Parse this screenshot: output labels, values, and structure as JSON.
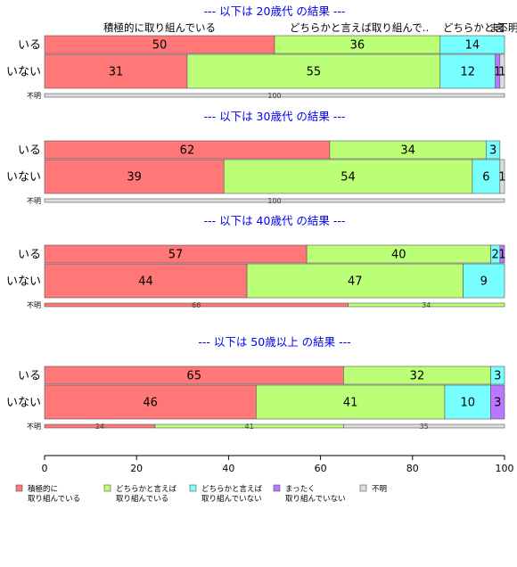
{
  "chart_data": {
    "type": "bar",
    "stacked": "horizontal-100",
    "categories_order": [
      "いる",
      "いない",
      "不明"
    ],
    "series": [
      {
        "name": "積極的に\n取り組んでいる",
        "color": "#ff7777"
      },
      {
        "name": "どちらかと言えば\n取り組んでいる",
        "color": "#bbff77"
      },
      {
        "name": "どちらかと言えば\n取り組んでいない",
        "color": "#77ffff"
      },
      {
        "name": "まったく\n取り組んでいない",
        "color": "#bb77ff"
      },
      {
        "name": "不明",
        "color": "#dddddd"
      }
    ],
    "top_labels": [
      "積極的に取り組んでいる",
      "どちらかと言えば取り組んで..",
      "どちらかと言..",
      "ま..",
      "不明"
    ],
    "xlim": [
      0,
      100
    ],
    "xticks": [
      0,
      20,
      40,
      60,
      80,
      100
    ],
    "panels": [
      {
        "title": "--- 以下は 20歳代 の結果 ---",
        "rows": [
          {
            "label": "いる",
            "values": [
              50,
              36,
              14,
              0,
              0
            ]
          },
          {
            "label": "いない",
            "values": [
              31,
              55,
              12,
              1,
              1
            ]
          },
          {
            "label": "不明",
            "values": [
              0,
              0,
              0,
              0,
              100
            ]
          }
        ]
      },
      {
        "title": "--- 以下は 30歳代 の結果 ---",
        "rows": [
          {
            "label": "いる",
            "values": [
              62,
              34,
              3,
              0,
              0
            ]
          },
          {
            "label": "いない",
            "values": [
              39,
              54,
              6,
              0,
              1
            ]
          },
          {
            "label": "不明",
            "values": [
              0,
              0,
              0,
              0,
              100
            ]
          }
        ]
      },
      {
        "title": "--- 以下は 40歳代 の結果 ---",
        "rows": [
          {
            "label": "いる",
            "values": [
              57,
              40,
              2,
              1,
              0
            ]
          },
          {
            "label": "いない",
            "values": [
              44,
              47,
              9,
              0,
              0
            ]
          },
          {
            "label": "不明",
            "values": [
              66,
              34,
              0,
              0,
              0
            ]
          }
        ]
      },
      {
        "title": "--- 以下は 50歳以上 の結果 ---",
        "rows": [
          {
            "label": "いる",
            "values": [
              65,
              32,
              3,
              0,
              0
            ]
          },
          {
            "label": "いない",
            "values": [
              46,
              41,
              10,
              3,
              0
            ]
          },
          {
            "label": "不明",
            "values": [
              24,
              41,
              0,
              0,
              35
            ]
          }
        ]
      }
    ]
  }
}
